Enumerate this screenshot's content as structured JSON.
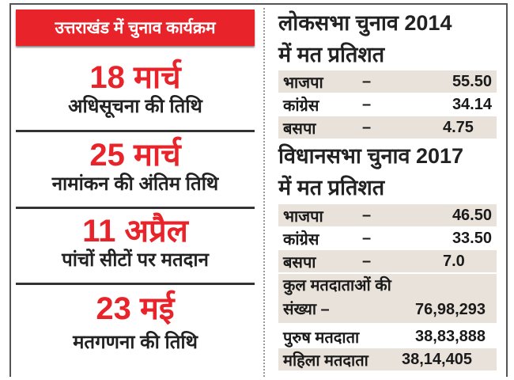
{
  "header": "उत्तराखंड में चुनाव कार्यक्रम",
  "schedule": [
    {
      "date": "18 मार्च",
      "label": "अधिसूचना की तिथि"
    },
    {
      "date": "25 मार्च",
      "label": "नामांकन की अंतिम तिथि"
    },
    {
      "date": "11 अप्रैल",
      "label": "पांचों सीटों पर मतदान"
    },
    {
      "date": "23 मई",
      "label": "मतगणना की तिथि"
    }
  ],
  "ls2014": {
    "title1": "लोकसभा चुनाव 2014",
    "title2": "में मत प्रतिशत",
    "rows": [
      {
        "party": "भाजपा",
        "dash": "–",
        "value": "55.50"
      },
      {
        "party": "कांग्रेस",
        "dash": "–",
        "value": "34.14"
      },
      {
        "party": "बसपा",
        "dash": "–",
        "value": "4.75"
      }
    ]
  },
  "vs2017": {
    "title1": "विधानसभा चुनाव 2017",
    "title2": "में मत प्रतिशत",
    "rows": [
      {
        "party": "भाजपा",
        "dash": "–",
        "value": "46.50"
      },
      {
        "party": "कांग्रेस",
        "dash": "–",
        "value": "33.50"
      },
      {
        "party": "बसपा",
        "dash": "–",
        "value": "7.0"
      }
    ]
  },
  "voters": {
    "total_label1": "कुल मतदाताओं की",
    "total_label2": "संख्या –",
    "total": "76,98,293",
    "male_label": "पुरुष मतदाता",
    "male": "38,83,888",
    "female_label": "महिला मतदाता",
    "female": "38,14,405"
  }
}
